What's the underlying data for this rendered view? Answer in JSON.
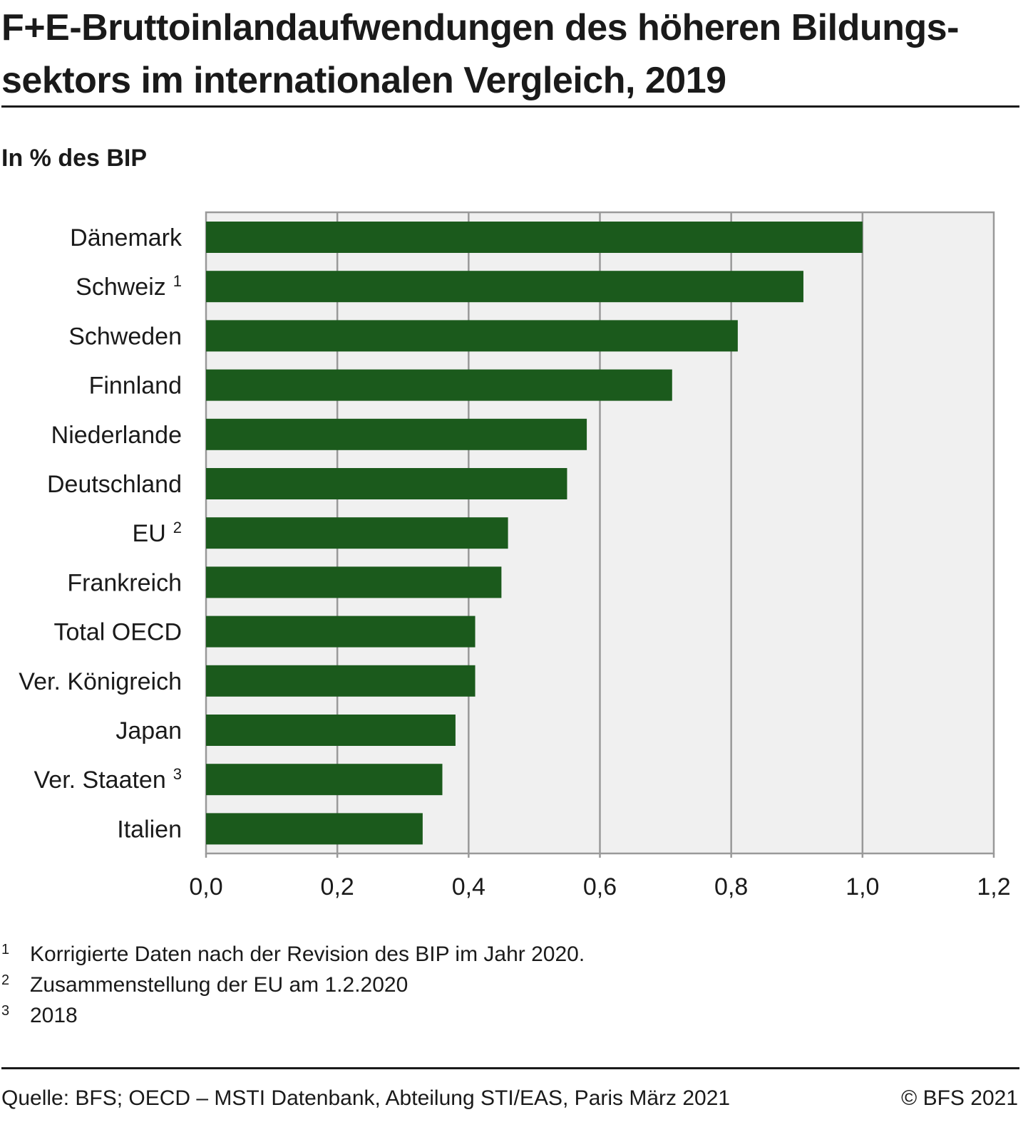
{
  "header": {
    "title": "F+E-Bruttoinlandaufwendungen des höheren Bildungs­sektors im internationalen Vergleich, 2019",
    "subtitle": "In % des BIP"
  },
  "chart_data": {
    "type": "bar",
    "orientation": "horizontal",
    "categories": [
      "Dänemark",
      "Schweiz",
      "Schweden",
      "Finnland",
      "Niederlande",
      "Deutschland",
      "EU",
      "Frankreich",
      "Total OECD",
      "Ver. Königreich",
      "Japan",
      "Ver. Staaten",
      "Italien"
    ],
    "category_footnote_marks": [
      "",
      "1",
      "",
      "",
      "",
      "",
      "2",
      "",
      "",
      "",
      "",
      "3",
      ""
    ],
    "values": [
      1.0,
      0.91,
      0.81,
      0.71,
      0.58,
      0.55,
      0.46,
      0.45,
      0.41,
      0.41,
      0.38,
      0.36,
      0.33
    ],
    "xlim": [
      0,
      1.2
    ],
    "xticks": [
      0,
      0.2,
      0.4,
      0.6,
      0.8,
      1.0,
      1.2
    ],
    "xtick_labels": [
      "0,0",
      "0,2",
      "0,4",
      "0,6",
      "0,8",
      "1,0",
      "1,2"
    ],
    "grid": true,
    "legend": false,
    "colors": {
      "bar": "#1b5a1c",
      "plot_background": "#f0f0f0",
      "grid": "#999999"
    }
  },
  "footnotes": [
    {
      "mark": "1",
      "text": "Korrigierte Daten nach der Revision des BIP im Jahr 2020."
    },
    {
      "mark": "2",
      "text": "Zusammenstellung der EU am 1.2.2020"
    },
    {
      "mark": "3",
      "text": "2018"
    }
  ],
  "footer": {
    "source": "Quelle: BFS; OECD – MSTI Datenbank, Abteilung STI/EAS, Paris März 2021",
    "copyright": "© BFS 2021"
  }
}
